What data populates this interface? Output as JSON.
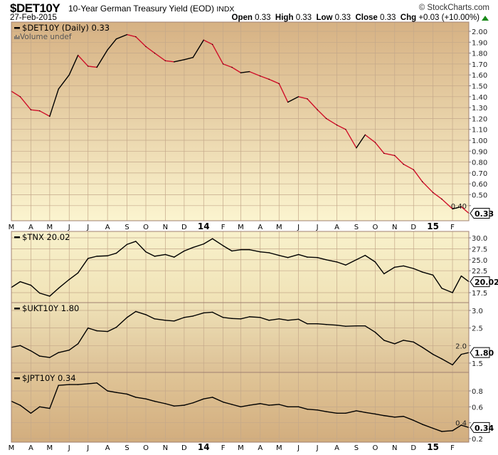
{
  "header": {
    "symbol": "$DET10Y",
    "description": "10-Year German Treasury Yield (EOD)",
    "exchange": "INDX",
    "date": "27-Feb-2015",
    "brand": "© StockCharts.com",
    "open_label": "Open",
    "open": "0.33",
    "high_label": "High",
    "high": "0.33",
    "low_label": "Low",
    "low": "0.33",
    "close_label": "Close",
    "close": "0.33",
    "chg_label": "Chg",
    "chg": "+0.03 (+10.00%)",
    "chg_direction": "up"
  },
  "colors": {
    "up": "#000000",
    "down": "#d0102a",
    "grid": "#c4a88a",
    "border": "#a08070"
  },
  "chart_data": [
    {
      "type": "line",
      "panel": "main",
      "legend": "$DET10Y (Daily) 0.33",
      "volume_note": "Volume undef",
      "last_value": "0.33",
      "yticks": [
        "2.00",
        "1.90",
        "1.80",
        "1.70",
        "1.60",
        "1.50",
        "1.40",
        "1.30",
        "1.20",
        "1.10",
        "1.00",
        "0.90",
        "0.80",
        "0.70",
        "0.60",
        "0.50",
        "0.40"
      ],
      "ylim": [
        0.3,
        2.08
      ],
      "color_by_direction": true,
      "values": [
        1.45,
        1.4,
        1.28,
        1.27,
        1.22,
        1.47,
        1.6,
        1.78,
        1.68,
        1.67,
        1.83,
        1.93,
        1.97,
        1.95,
        1.86,
        1.8,
        1.73,
        1.72,
        1.74,
        1.76,
        1.92,
        1.88,
        1.7,
        1.67,
        1.62,
        1.63,
        1.59,
        1.56,
        1.52,
        1.35,
        1.4,
        1.38,
        1.28,
        1.2,
        1.14,
        1.1,
        0.93,
        1.05,
        0.98,
        0.88,
        0.86,
        0.78,
        0.73,
        0.62,
        0.52,
        0.46,
        0.37,
        0.39,
        0.33
      ]
    },
    {
      "type": "line",
      "panel": "tnx",
      "legend": "$TNX 20.02",
      "last_value": "20.02",
      "yticks": [
        "30.0",
        "27.5",
        "25.0",
        "22.5",
        "17.5"
      ],
      "values": [
        18.7,
        20.0,
        19.2,
        17.4,
        16.7,
        18.5,
        20.5,
        22.0,
        25.3,
        25.8,
        25.9,
        26.5,
        28.5,
        29.2,
        26.8,
        25.8,
        26.2,
        25.6,
        27.0,
        27.8,
        28.6,
        29.8,
        28.2,
        27.0,
        27.3,
        27.3,
        26.8,
        26.6,
        26.0,
        25.5,
        26.2,
        25.6,
        25.5,
        25.0,
        24.5,
        23.8,
        25.0,
        26.0,
        24.5,
        21.8,
        23.3,
        23.6,
        23.0,
        22.2,
        21.5,
        18.5,
        17.5,
        21.3,
        20.0
      ]
    },
    {
      "type": "line",
      "panel": "ukt",
      "legend": "$UKT10Y 1.80",
      "last_value": "1.80",
      "yticks": [
        "3.0",
        "2.5",
        "2.0",
        "1.5"
      ],
      "values": [
        1.95,
        2.0,
        1.85,
        1.7,
        1.66,
        1.8,
        1.87,
        2.05,
        2.5,
        2.42,
        2.4,
        2.52,
        2.8,
        2.97,
        2.88,
        2.76,
        2.72,
        2.7,
        2.8,
        2.84,
        2.93,
        2.95,
        2.8,
        2.77,
        2.76,
        2.82,
        2.8,
        2.72,
        2.76,
        2.72,
        2.75,
        2.62,
        2.62,
        2.6,
        2.58,
        2.55,
        2.56,
        2.56,
        2.38,
        2.15,
        2.05,
        2.15,
        2.1,
        1.95,
        1.75,
        1.62,
        1.45,
        1.75,
        1.8
      ]
    },
    {
      "type": "line",
      "panel": "jpt",
      "legend": "$JPT10Y 0.34",
      "last_value": "0.34",
      "yticks": [
        "0.8",
        "0.6",
        "0.4",
        "0.2"
      ],
      "values": [
        0.67,
        0.62,
        0.52,
        0.6,
        0.58,
        0.87,
        0.88,
        0.88,
        0.89,
        0.9,
        0.8,
        0.78,
        0.76,
        0.72,
        0.7,
        0.67,
        0.64,
        0.61,
        0.62,
        0.65,
        0.7,
        0.72,
        0.66,
        0.63,
        0.6,
        0.62,
        0.64,
        0.62,
        0.63,
        0.6,
        0.6,
        0.57,
        0.56,
        0.54,
        0.52,
        0.52,
        0.55,
        0.53,
        0.51,
        0.49,
        0.47,
        0.48,
        0.43,
        0.38,
        0.33,
        0.29,
        0.3,
        0.37,
        0.34
      ]
    }
  ],
  "dates": [
    "2013-03-01",
    "2013-03-15",
    "2013-04-01",
    "2013-04-15",
    "2013-05-01",
    "2013-05-15",
    "2013-06-01",
    "2013-06-15",
    "2013-07-01",
    "2013-07-15",
    "2013-08-01",
    "2013-08-15",
    "2013-09-01",
    "2013-09-15",
    "2013-10-01",
    "2013-10-15",
    "2013-11-01",
    "2013-11-15",
    "2013-12-01",
    "2013-12-15",
    "2014-01-01",
    "2014-01-15",
    "2014-02-01",
    "2014-02-15",
    "2014-03-01",
    "2014-03-15",
    "2014-04-01",
    "2014-04-15",
    "2014-05-01",
    "2014-05-15",
    "2014-06-01",
    "2014-06-15",
    "2014-07-01",
    "2014-07-15",
    "2014-08-01",
    "2014-08-15",
    "2014-09-01",
    "2014-09-15",
    "2014-10-01",
    "2014-10-15",
    "2014-11-01",
    "2014-11-15",
    "2014-12-01",
    "2014-12-15",
    "2015-01-01",
    "2015-01-15",
    "2015-02-01",
    "2015-02-15",
    "2015-02-27"
  ],
  "xticks": [
    {
      "date": "2013-03-01",
      "label": "M"
    },
    {
      "date": "2013-04-01",
      "label": "A"
    },
    {
      "date": "2013-05-01",
      "label": "M"
    },
    {
      "date": "2013-06-01",
      "label": "J"
    },
    {
      "date": "2013-07-01",
      "label": "J"
    },
    {
      "date": "2013-08-01",
      "label": "A"
    },
    {
      "date": "2013-09-01",
      "label": "S"
    },
    {
      "date": "2013-10-01",
      "label": "O"
    },
    {
      "date": "2013-11-01",
      "label": "N"
    },
    {
      "date": "2013-12-01",
      "label": "D"
    },
    {
      "date": "2014-01-01",
      "label": "14",
      "bold": true
    },
    {
      "date": "2014-02-01",
      "label": "F"
    },
    {
      "date": "2014-03-01",
      "label": "M"
    },
    {
      "date": "2014-04-01",
      "label": "A"
    },
    {
      "date": "2014-05-01",
      "label": "M"
    },
    {
      "date": "2014-06-01",
      "label": "J"
    },
    {
      "date": "2014-07-01",
      "label": "J"
    },
    {
      "date": "2014-08-01",
      "label": "A"
    },
    {
      "date": "2014-09-01",
      "label": "S"
    },
    {
      "date": "2014-10-01",
      "label": "O"
    },
    {
      "date": "2014-11-01",
      "label": "N"
    },
    {
      "date": "2014-12-01",
      "label": "D"
    },
    {
      "date": "2015-01-01",
      "label": "15",
      "bold": true
    },
    {
      "date": "2015-02-01",
      "label": "F"
    }
  ]
}
